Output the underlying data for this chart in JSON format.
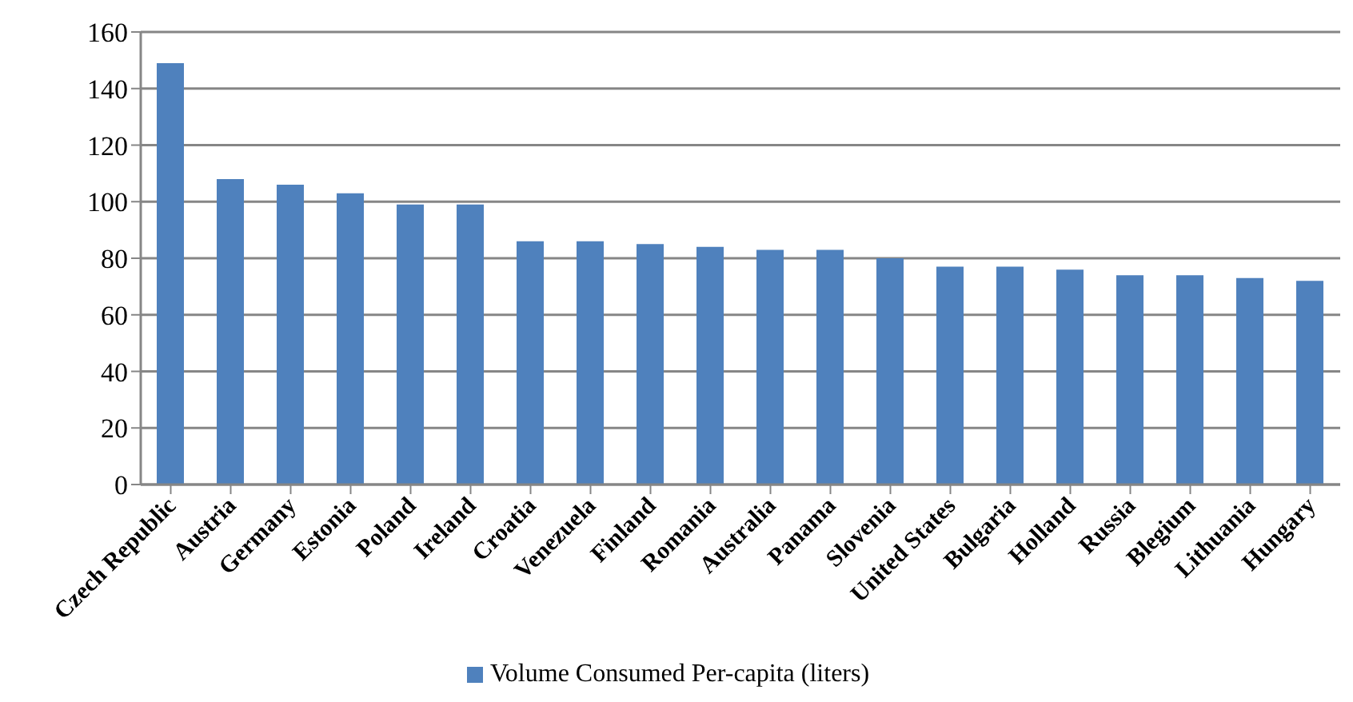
{
  "chart_data": {
    "type": "bar",
    "categories": [
      "Czech Republic",
      "Austria",
      "Germany",
      "Estonia",
      "Poland",
      "Ireland",
      "Croatia",
      "Venezuela",
      "Finland",
      "Romania",
      "Australia",
      "Panama",
      "Slovenia",
      "United States",
      "Bulgaria",
      "Holland",
      "Russia",
      "Blegium",
      "Lithuania",
      "Hungary"
    ],
    "series": [
      {
        "name": "Volume Consumed Per-capita (liters)",
        "color": "#4f81bd",
        "values": [
          149,
          108,
          106,
          103,
          99,
          99,
          86,
          86,
          85,
          84,
          83,
          83,
          80,
          77,
          77,
          76,
          74,
          74,
          73,
          72
        ]
      }
    ],
    "ylim": [
      0,
      160
    ],
    "yticks": [
      0,
      20,
      40,
      60,
      80,
      100,
      120,
      140,
      160
    ],
    "grid": "y",
    "legend": "bottom"
  }
}
